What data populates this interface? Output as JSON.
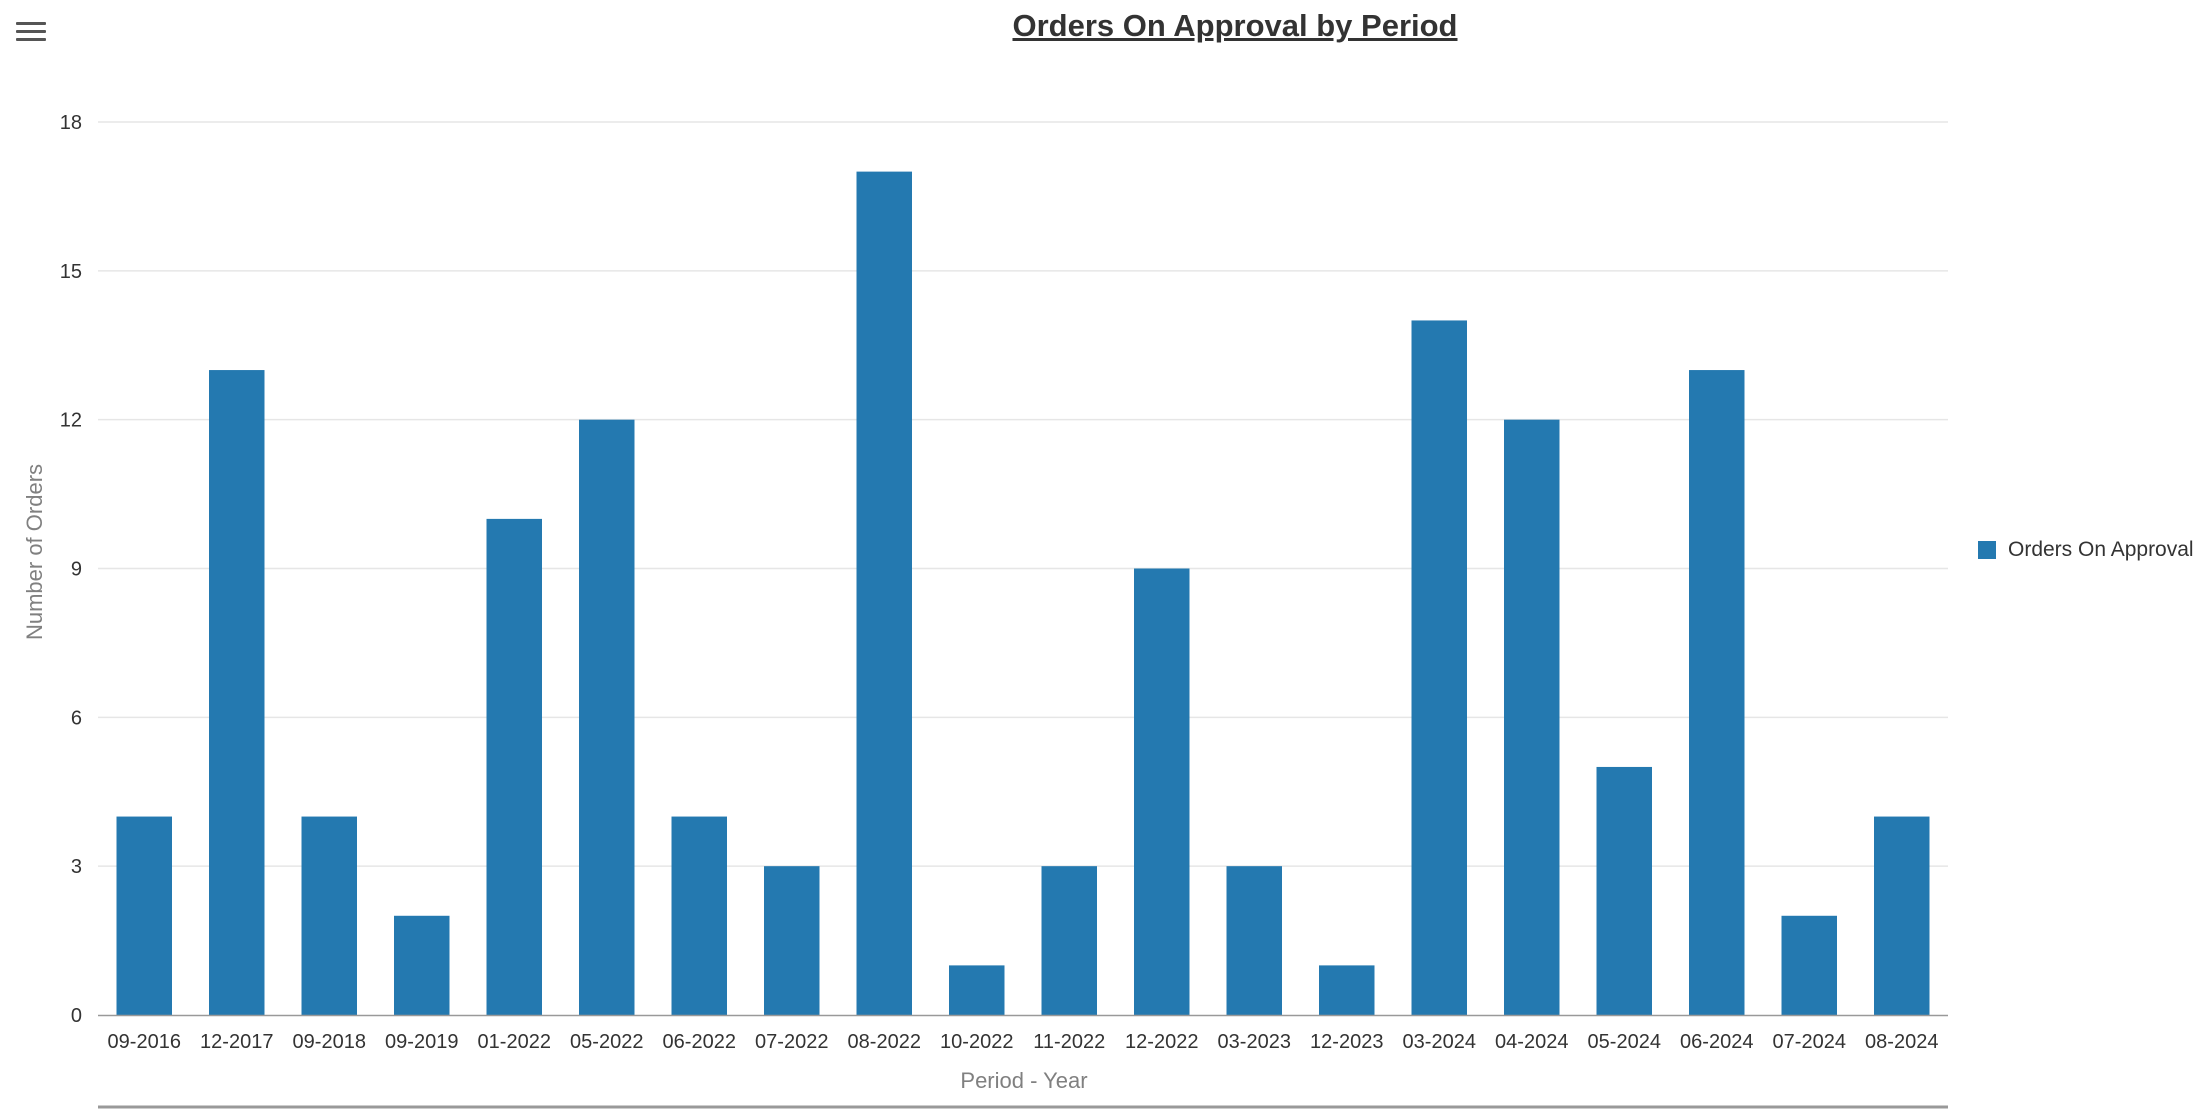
{
  "toolbar": {
    "menu_icon": "hamburger-menu-icon"
  },
  "colors": {
    "bar": "#2479B0",
    "grid": "#e6e6e6",
    "axis": "#999999",
    "text": "#333333",
    "axis_title": "#808080"
  },
  "chart_data": {
    "type": "bar",
    "title": "Orders On Approval by Period",
    "xlabel": "Period - Year",
    "ylabel": "Number of Orders",
    "ylim": [
      0,
      18
    ],
    "yticks": [
      0,
      3,
      6,
      9,
      12,
      15,
      18
    ],
    "grid": true,
    "legend_position": "right",
    "categories": [
      "09-2016",
      "12-2017",
      "09-2018",
      "09-2019",
      "01-2022",
      "05-2022",
      "06-2022",
      "07-2022",
      "08-2022",
      "10-2022",
      "11-2022",
      "12-2022",
      "03-2023",
      "12-2023",
      "03-2024",
      "04-2024",
      "05-2024",
      "06-2024",
      "07-2024",
      "08-2024"
    ],
    "series": [
      {
        "name": "Orders On Approval",
        "values": [
          4,
          13,
          4,
          2,
          10,
          12,
          4,
          3,
          17,
          1,
          3,
          9,
          3,
          1,
          14,
          12,
          5,
          13,
          2,
          4
        ]
      }
    ]
  }
}
